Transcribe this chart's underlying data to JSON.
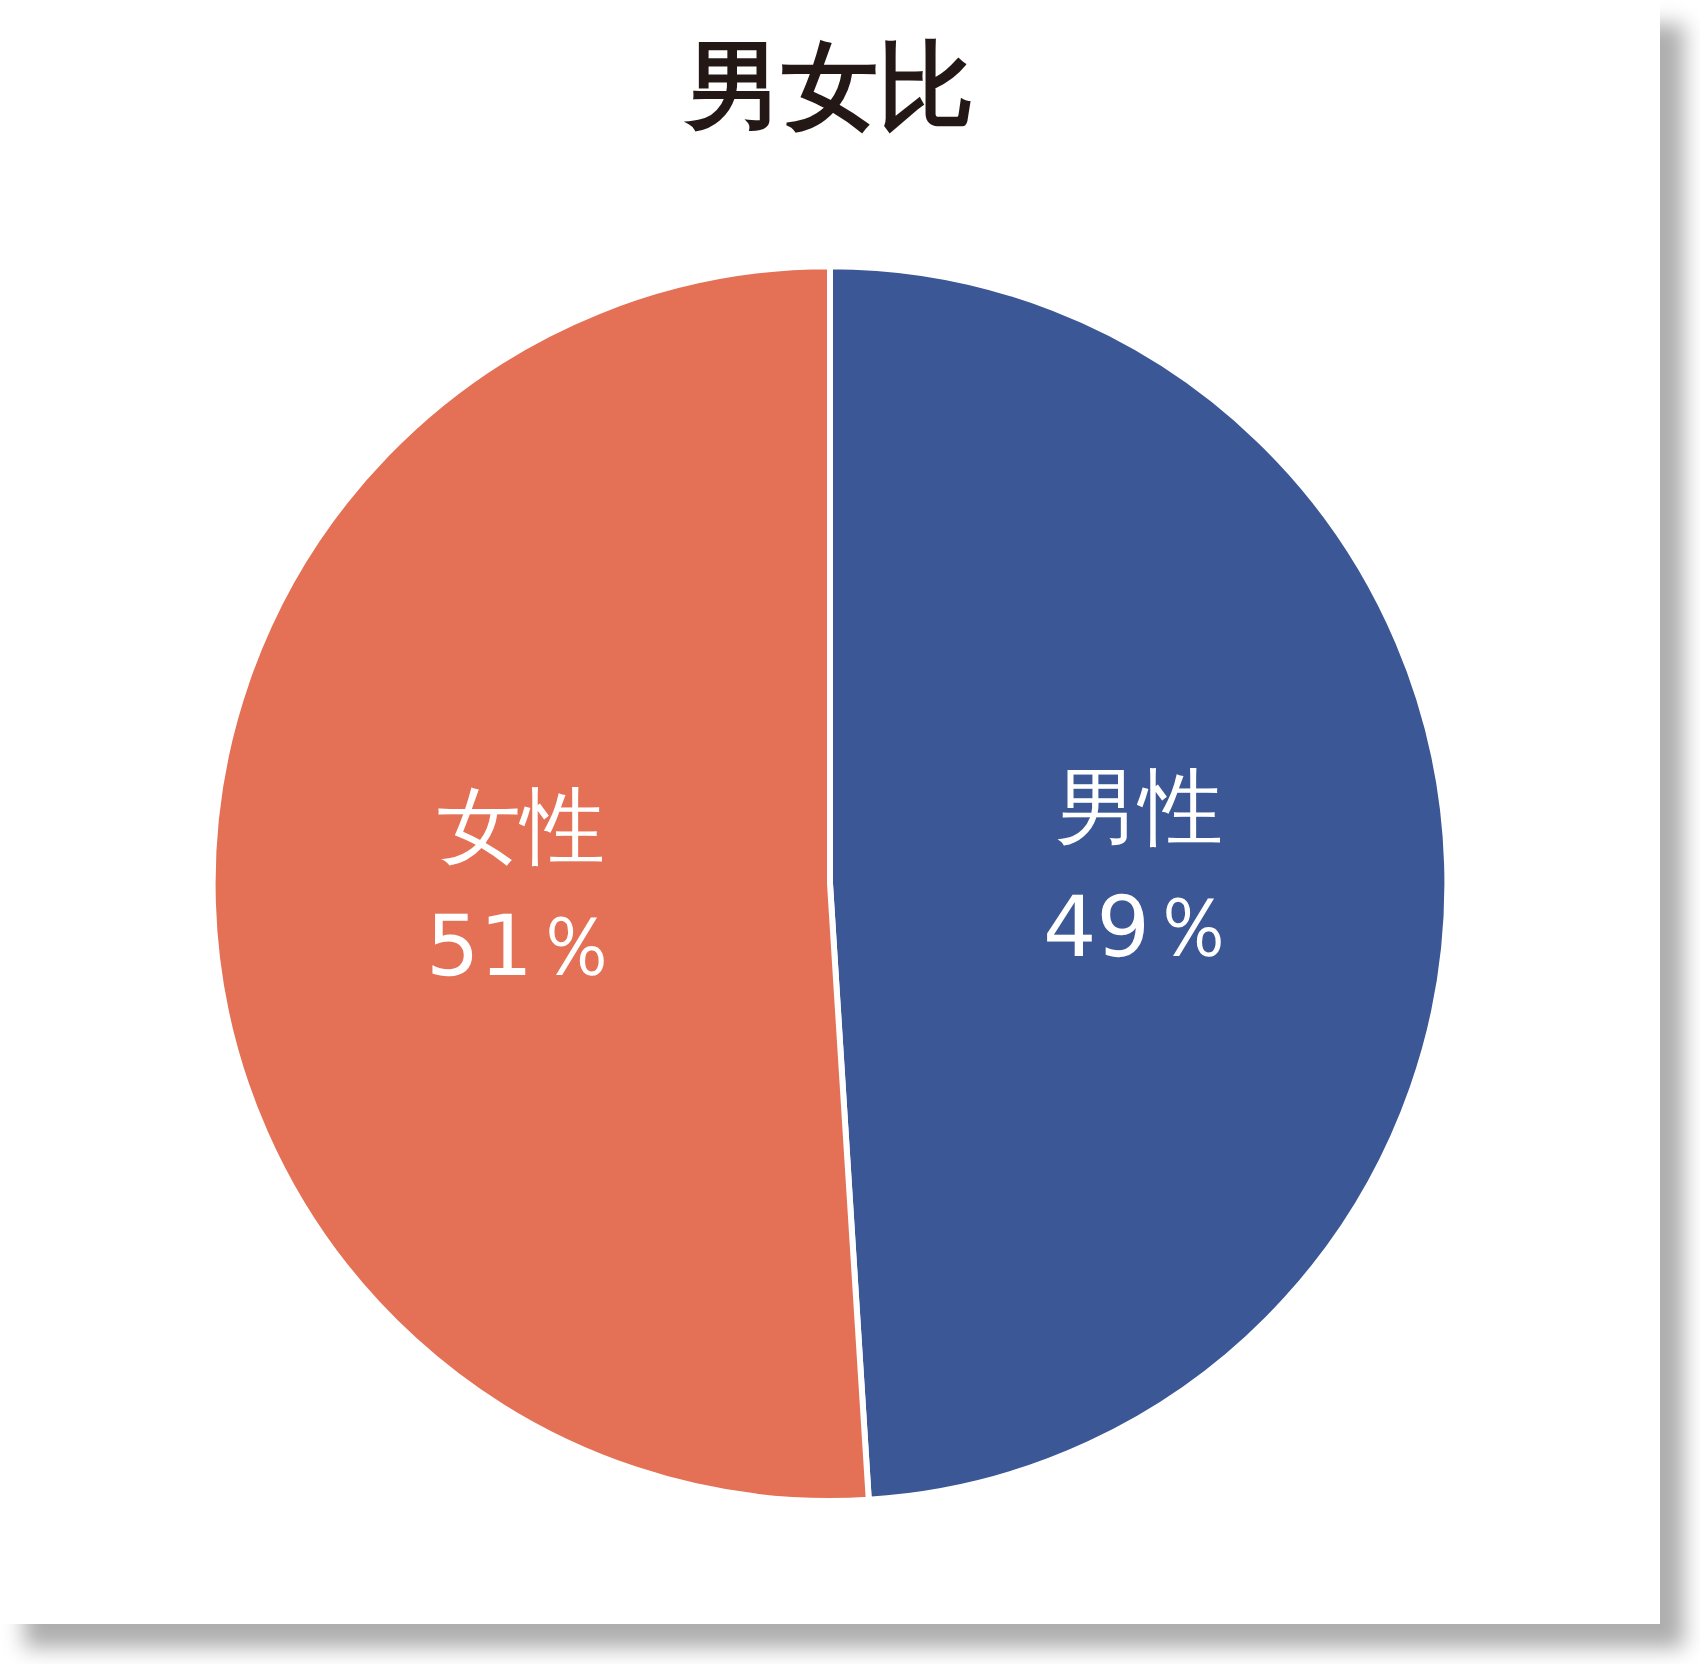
{
  "chart_data": {
    "type": "pie",
    "title": "男女比",
    "categories": [
      "男性",
      "女性"
    ],
    "values": [
      49,
      51
    ],
    "colors": [
      "#3b5795",
      "#e47055"
    ],
    "value_labels": [
      "49％",
      "51％"
    ]
  }
}
